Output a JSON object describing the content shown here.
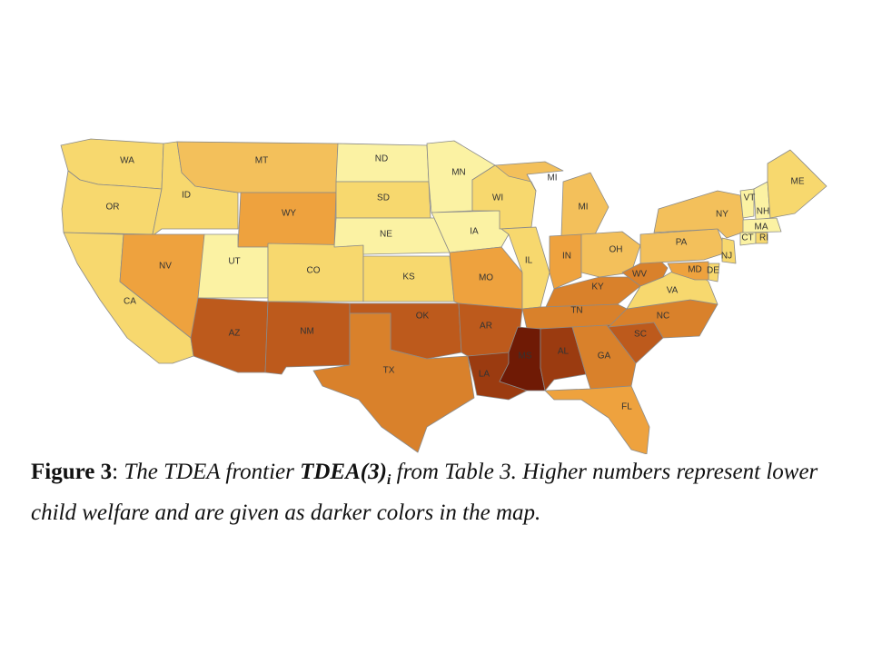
{
  "map": {
    "description_colors": {
      "lightest": "#fbf2a3",
      "light": "#f7d86e",
      "mid_light": "#f3c05b",
      "mid": "#eea23e",
      "mid_dark": "#d9812b",
      "dark": "#bd5a1c",
      "darker": "#9b3b10",
      "darkest": "#6f1a05"
    },
    "states": [
      {
        "abbr": "WA",
        "level": "light"
      },
      {
        "abbr": "OR",
        "level": "light"
      },
      {
        "abbr": "CA",
        "level": "light"
      },
      {
        "abbr": "ID",
        "level": "light"
      },
      {
        "abbr": "NV",
        "level": "mid"
      },
      {
        "abbr": "MT",
        "level": "mid_light"
      },
      {
        "abbr": "WY",
        "level": "mid"
      },
      {
        "abbr": "UT",
        "level": "lightest"
      },
      {
        "abbr": "CO",
        "level": "light"
      },
      {
        "abbr": "AZ",
        "level": "dark"
      },
      {
        "abbr": "NM",
        "level": "dark"
      },
      {
        "abbr": "ND",
        "level": "lightest"
      },
      {
        "abbr": "SD",
        "level": "light"
      },
      {
        "abbr": "NE",
        "level": "lightest"
      },
      {
        "abbr": "KS",
        "level": "light"
      },
      {
        "abbr": "OK",
        "level": "dark"
      },
      {
        "abbr": "TX",
        "level": "mid_dark"
      },
      {
        "abbr": "MN",
        "level": "lightest"
      },
      {
        "abbr": "IA",
        "level": "lightest"
      },
      {
        "abbr": "MO",
        "level": "mid"
      },
      {
        "abbr": "AR",
        "level": "dark"
      },
      {
        "abbr": "LA",
        "level": "darker"
      },
      {
        "abbr": "WI",
        "level": "light"
      },
      {
        "abbr": "IL",
        "level": "light"
      },
      {
        "abbr": "MI",
        "level": "mid_light"
      },
      {
        "abbr": "IN",
        "level": "mid"
      },
      {
        "abbr": "OH",
        "level": "mid_light"
      },
      {
        "abbr": "KY",
        "level": "mid_dark"
      },
      {
        "abbr": "TN",
        "level": "mid_dark"
      },
      {
        "abbr": "MS",
        "level": "darkest"
      },
      {
        "abbr": "AL",
        "level": "darker"
      },
      {
        "abbr": "GA",
        "level": "mid_dark"
      },
      {
        "abbr": "FL",
        "level": "mid"
      },
      {
        "abbr": "SC",
        "level": "dark"
      },
      {
        "abbr": "NC",
        "level": "mid_dark"
      },
      {
        "abbr": "VA",
        "level": "light"
      },
      {
        "abbr": "WV",
        "level": "mid_dark"
      },
      {
        "abbr": "PA",
        "level": "mid_light"
      },
      {
        "abbr": "NY",
        "level": "mid_light"
      },
      {
        "abbr": "VT",
        "level": "lightest"
      },
      {
        "abbr": "NH",
        "level": "lightest"
      },
      {
        "abbr": "ME",
        "level": "light"
      },
      {
        "abbr": "MA",
        "level": "lightest"
      },
      {
        "abbr": "CT",
        "level": "lightest"
      },
      {
        "abbr": "RI",
        "level": "light"
      },
      {
        "abbr": "NJ",
        "level": "light"
      },
      {
        "abbr": "DE",
        "level": "light"
      },
      {
        "abbr": "MD",
        "level": "mid"
      }
    ]
  },
  "caption": {
    "lead": "Figure 3",
    "colon": ": ",
    "part1": "The TDEA frontier ",
    "bold_term": "TDEA(3)",
    "subscript": "i",
    "part2": "  from Table 3. Higher numbers represent lower child welfare and are given as darker colors in the map."
  }
}
